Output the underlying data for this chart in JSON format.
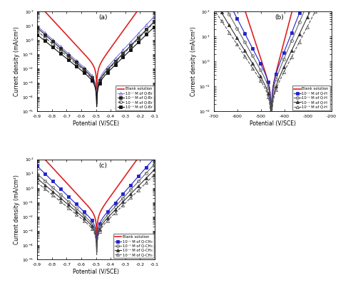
{
  "subplots": [
    {
      "label": "(a)",
      "xlabel": "Potential (V/SCE)",
      "ylabel": "Current density (mA/cm²)",
      "xlim": [
        -0.9,
        -0.1
      ],
      "ylim": [
        1e-05,
        100.0
      ],
      "ecorr": -0.495,
      "x_ticks": [
        -0.9,
        -0.8,
        -0.7,
        -0.6,
        -0.5,
        -0.4,
        -0.3,
        -0.2,
        -0.1
      ],
      "series": [
        {
          "label": "Blank solution",
          "color": "#dd2222",
          "linestyle": "-",
          "marker": null,
          "linewidth": 1.2,
          "bc": 0.09,
          "ba": 0.07,
          "icorr": 0.012
        },
        {
          "label": "10⁻² M of Q-Br",
          "color": "#7777dd",
          "linestyle": "-",
          "marker": "^",
          "markersize": 3,
          "linewidth": 0.8,
          "markerfacecolor": "none",
          "markeredgewidth": 0.6,
          "bc": 0.11,
          "ba": 0.09,
          "icorr": 0.002
        },
        {
          "label": "10⁻³ M of Q-Br",
          "color": "#222222",
          "linestyle": "-",
          "marker": "s",
          "markersize": 3,
          "linewidth": 0.8,
          "markerfacecolor": "#222222",
          "markeredgewidth": 0.6,
          "bc": 0.11,
          "ba": 0.095,
          "icorr": 0.0015
        },
        {
          "label": "10⁻⁴ M of Q-Br",
          "color": "#444444",
          "linestyle": "--",
          "marker": "o",
          "markersize": 3,
          "linewidth": 0.8,
          "markerfacecolor": "none",
          "markeredgewidth": 0.6,
          "bc": 0.115,
          "ba": 0.095,
          "icorr": 0.0013
        },
        {
          "label": "10⁻⁵ M of Q-Br",
          "color": "#111111",
          "linestyle": "-",
          "marker": "s",
          "markersize": 3,
          "linewidth": 0.8,
          "markerfacecolor": "#111111",
          "markeredgewidth": 0.6,
          "bc": 0.12,
          "ba": 0.1,
          "icorr": 0.001
        }
      ]
    },
    {
      "label": "(b)",
      "xlabel": "Potential (V/SCE)",
      "ylabel": "Current density (mA/cm²)",
      "xlim": [
        -700,
        -200
      ],
      "ylim": [
        0.01,
        100.0
      ],
      "ecorr": -455,
      "x_ticks": [
        -700,
        -600,
        -500,
        -400,
        -300,
        -200
      ],
      "series": [
        {
          "label": "Blank solution",
          "color": "#dd2222",
          "linestyle": "-",
          "marker": null,
          "linewidth": 1.2,
          "bc": 35,
          "ba": 28,
          "icorr": 0.07
        },
        {
          "label": "10⁻² M of Q-H",
          "color": "#2222cc",
          "linestyle": "-",
          "marker": "s",
          "markersize": 3,
          "linewidth": 0.8,
          "markerfacecolor": "#2222cc",
          "markeredgewidth": 0.6,
          "bc": 55,
          "ba": 42,
          "icorr": 0.12
        },
        {
          "label": "10⁻³ M of Q-H",
          "color": "#666666",
          "linestyle": "-",
          "marker": "o",
          "markersize": 3,
          "linewidth": 0.8,
          "markerfacecolor": "none",
          "markeredgewidth": 0.6,
          "bc": 60,
          "ba": 45,
          "icorr": 0.08
        },
        {
          "label": "10⁻⁴ M of Q-H",
          "color": "#333333",
          "linestyle": "-",
          "marker": "^",
          "markersize": 3,
          "linewidth": 0.8,
          "markerfacecolor": "#333333",
          "markeredgewidth": 0.6,
          "bc": 65,
          "ba": 50,
          "icorr": 0.05
        },
        {
          "label": "10⁻⁵ M of Q-H",
          "color": "#555555",
          "linestyle": "--",
          "marker": "^",
          "markersize": 3,
          "linewidth": 0.8,
          "markerfacecolor": "none",
          "markeredgewidth": 0.6,
          "bc": 70,
          "ba": 55,
          "icorr": 0.04
        }
      ]
    },
    {
      "label": "(c)",
      "xlabel": "Potential (V/SCE)",
      "ylabel": "Current density (mA/cm²)",
      "xlim": [
        -0.9,
        -0.1
      ],
      "ylim": [
        1e-05,
        100.0
      ],
      "ecorr": -0.495,
      "x_ticks": [
        -0.9,
        -0.8,
        -0.7,
        -0.6,
        -0.5,
        -0.4,
        -0.3,
        -0.2,
        -0.1
      ],
      "series": [
        {
          "label": "Blank solution",
          "color": "#dd2222",
          "linestyle": "-",
          "marker": null,
          "linewidth": 1.2,
          "bc": 0.09,
          "ba": 0.07,
          "icorr": 0.012
        },
        {
          "label": "10⁻² M of Q-CH₃",
          "color": "#2222cc",
          "linestyle": "-",
          "marker": "s",
          "markersize": 3,
          "linewidth": 0.8,
          "markerfacecolor": "#2222cc",
          "markeredgewidth": 0.6,
          "bc": 0.1,
          "ba": 0.085,
          "icorr": 0.003
        },
        {
          "label": "10⁻³ M of Q-CH₃",
          "color": "#666666",
          "linestyle": "-",
          "marker": "o",
          "markersize": 3,
          "linewidth": 0.8,
          "markerfacecolor": "none",
          "markeredgewidth": 0.6,
          "bc": 0.11,
          "ba": 0.09,
          "icorr": 0.002
        },
        {
          "label": "10⁻⁴ M of Q-CH₃",
          "color": "#333333",
          "linestyle": "-",
          "marker": "^",
          "markersize": 3,
          "linewidth": 0.8,
          "markerfacecolor": "#333333",
          "markeredgewidth": 0.6,
          "bc": 0.115,
          "ba": 0.095,
          "icorr": 0.0014
        },
        {
          "label": "10⁻⁵ M of Q-CH₃",
          "color": "#555555",
          "linestyle": "--",
          "marker": "^",
          "markersize": 3,
          "linewidth": 0.8,
          "markerfacecolor": "none",
          "markeredgewidth": 0.6,
          "bc": 0.12,
          "ba": 0.1,
          "icorr": 0.001
        }
      ]
    }
  ]
}
